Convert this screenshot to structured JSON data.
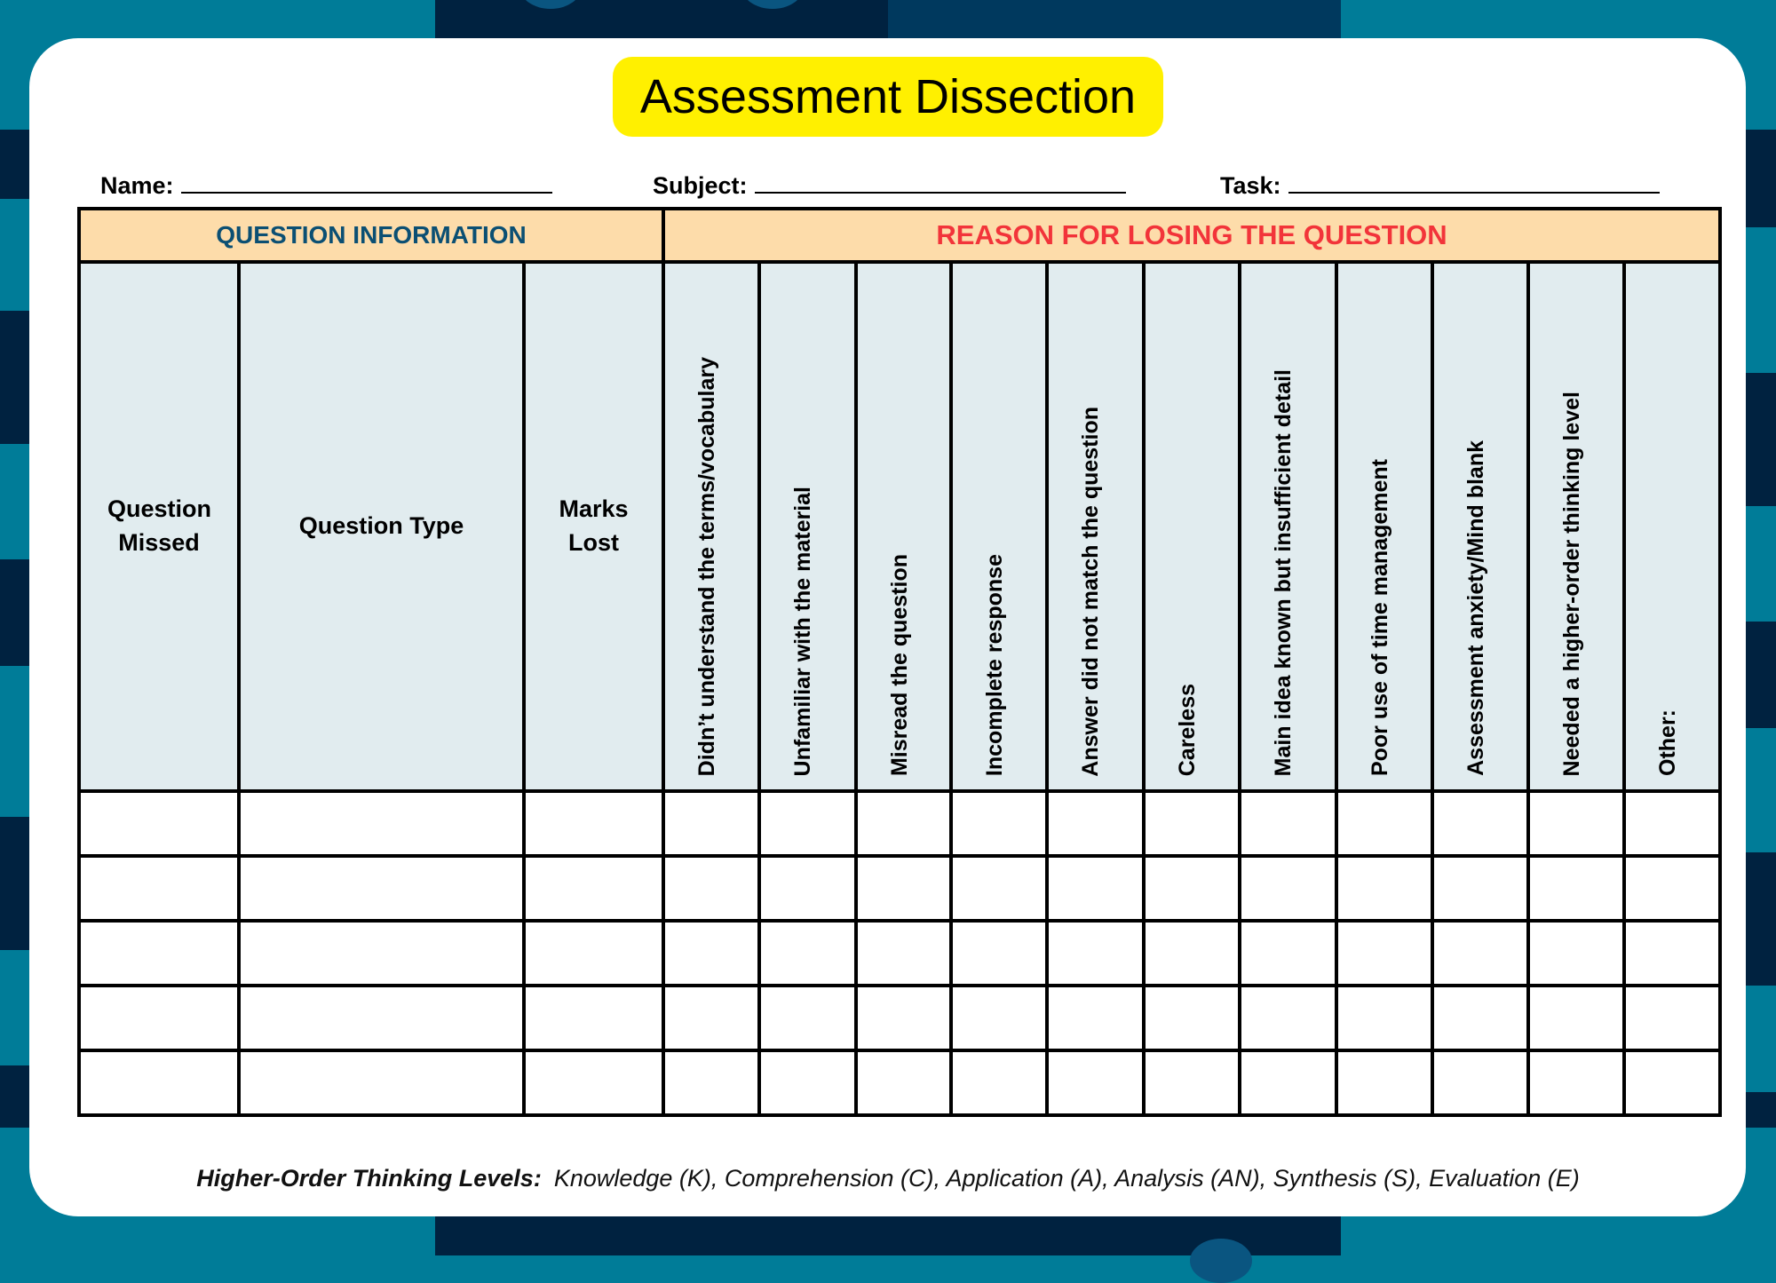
{
  "title": "Assessment Dissection",
  "fields": [
    {
      "label": "Name:"
    },
    {
      "label": "Subject:"
    },
    {
      "label": "Task:"
    }
  ],
  "table": {
    "groups": {
      "info": "QUESTION INFORMATION",
      "reason": "REASON FOR LOSING THE QUESTION"
    },
    "info_columns": [
      "Question Missed",
      "Question Type",
      "Marks Lost"
    ],
    "reason_columns": [
      "Didn’t understand the terms/vocabulary",
      "Unfamiliar with the material",
      "Misread the question",
      "Incomplete response",
      "Answer did not match the question",
      "Careless",
      "Main idea known but insufficient detail",
      "Poor use of time management",
      "Assessment anxiety/Mind blank",
      "Needed a higher-order thinking level",
      "Other:"
    ],
    "blank_rows": 5
  },
  "footer": {
    "label": "Higher-Order Thinking Levels:",
    "text": "Knowledge (K), Comprehension (C), Application (A), Analysis (AN), Synthesis (S), Evaluation (E)"
  },
  "colors": {
    "background": "#007C98",
    "pattern": "#002240",
    "title_bg": "#FFF000",
    "group_header_bg": "#FDDCAA",
    "info_header": "#0B4F73",
    "reason_header": "#F2343A",
    "column_header_bg": "#E1ECEF"
  }
}
